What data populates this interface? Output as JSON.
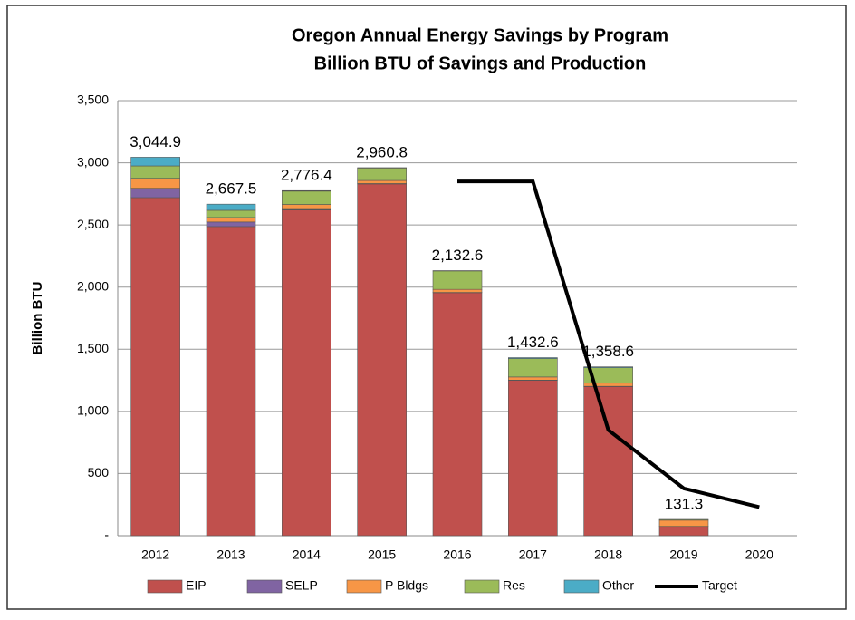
{
  "chart_data": {
    "type": "bar",
    "stacked": true,
    "title": "Oregon Annual Energy Savings by Program",
    "subtitle": "Billion BTU of Savings and Production",
    "y_label": "Billion BTU",
    "categories": [
      "2012",
      "2013",
      "2014",
      "2015",
      "2016",
      "2017",
      "2018",
      "2019",
      "2020"
    ],
    "series": [
      {
        "name": "EIP",
        "color": "#c0504d",
        "values": [
          2720,
          2487,
          2620,
          2830,
          1955,
          1250,
          1200,
          75,
          null
        ]
      },
      {
        "name": "SELP",
        "color": "#8064a2",
        "values": [
          75,
          37,
          5,
          3,
          2,
          2,
          2,
          0,
          null
        ]
      },
      {
        "name": "P Bldgs",
        "color": "#f79646",
        "values": [
          80,
          36,
          40,
          25,
          25,
          25,
          25,
          50,
          null
        ]
      },
      {
        "name": "Res",
        "color": "#9bbb59",
        "values": [
          100,
          58,
          107,
          100,
          148,
          148,
          125,
          6.3,
          null
        ]
      },
      {
        "name": "Other",
        "color": "#4bacc6",
        "values": [
          69.9,
          49.5,
          4.4,
          2.8,
          2.6,
          7.6,
          6.6,
          0,
          null
        ]
      },
      {
        "name": "Target",
        "type": "line",
        "color": "#000000",
        "values": [
          null,
          null,
          null,
          null,
          2850,
          2850,
          850,
          380,
          230
        ]
      }
    ],
    "totals": {
      "values": [
        3044.9,
        2667.5,
        2776.4,
        2960.8,
        2132.6,
        1432.6,
        1358.6,
        131.3,
        null
      ],
      "value_labels": [
        "3,044.9",
        "2,667.5",
        "2,776.4",
        "2,960.8",
        "2,132.6",
        "1,432.6",
        "1,358.6",
        "131.3",
        null
      ]
    },
    "ylim": [
      0,
      3500
    ],
    "yticks": [
      {
        "value": 0,
        "label": "-"
      },
      500,
      {
        "value": 1000,
        "label": "1,000"
      },
      {
        "value": 1500,
        "label": "1,500"
      },
      {
        "value": 2000,
        "label": "2,000"
      },
      {
        "value": 2500,
        "label": "2,500"
      },
      {
        "value": 3000,
        "label": "3,000"
      },
      {
        "value": 3500,
        "label": "3,500"
      }
    ],
    "grid": true,
    "legend": "bottom"
  }
}
